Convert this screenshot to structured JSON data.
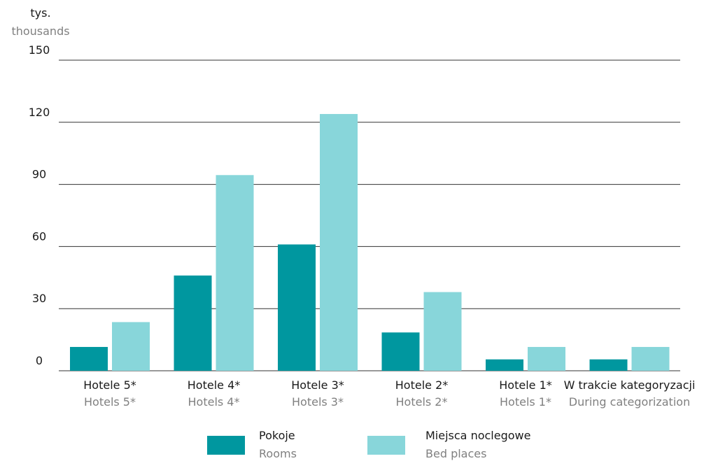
{
  "chart_data": {
    "type": "bar",
    "unit_label": {
      "pl": "tys.",
      "en": "thousands"
    },
    "ylim": [
      0,
      150
    ],
    "yticks": [
      0,
      30,
      60,
      90,
      120,
      150
    ],
    "grid": true,
    "categories": [
      {
        "pl": "Hotele 5*",
        "en": "Hotels 5*"
      },
      {
        "pl": "Hotele 4*",
        "en": "Hotels 4*"
      },
      {
        "pl": "Hotele 3*",
        "en": "Hotels 3*"
      },
      {
        "pl": "Hotele 2*",
        "en": "Hotels 2*"
      },
      {
        "pl": "Hotele 1*",
        "en": "Hotels 1*"
      },
      {
        "pl": "W trakcie kategoryzacji",
        "en": "During categorization"
      }
    ],
    "series": [
      {
        "name": {
          "pl": "Pokoje",
          "en": "Rooms"
        },
        "color": "#00979f",
        "values": [
          11.5,
          46,
          61,
          18.5,
          5.5,
          5.5
        ]
      },
      {
        "name": {
          "pl": "Miejsca noclegowe",
          "en": "Bed places"
        },
        "color": "#88d6da",
        "values": [
          23.5,
          94.5,
          124,
          38,
          11.5,
          11.5
        ]
      }
    ],
    "legend_position": "bottom"
  }
}
